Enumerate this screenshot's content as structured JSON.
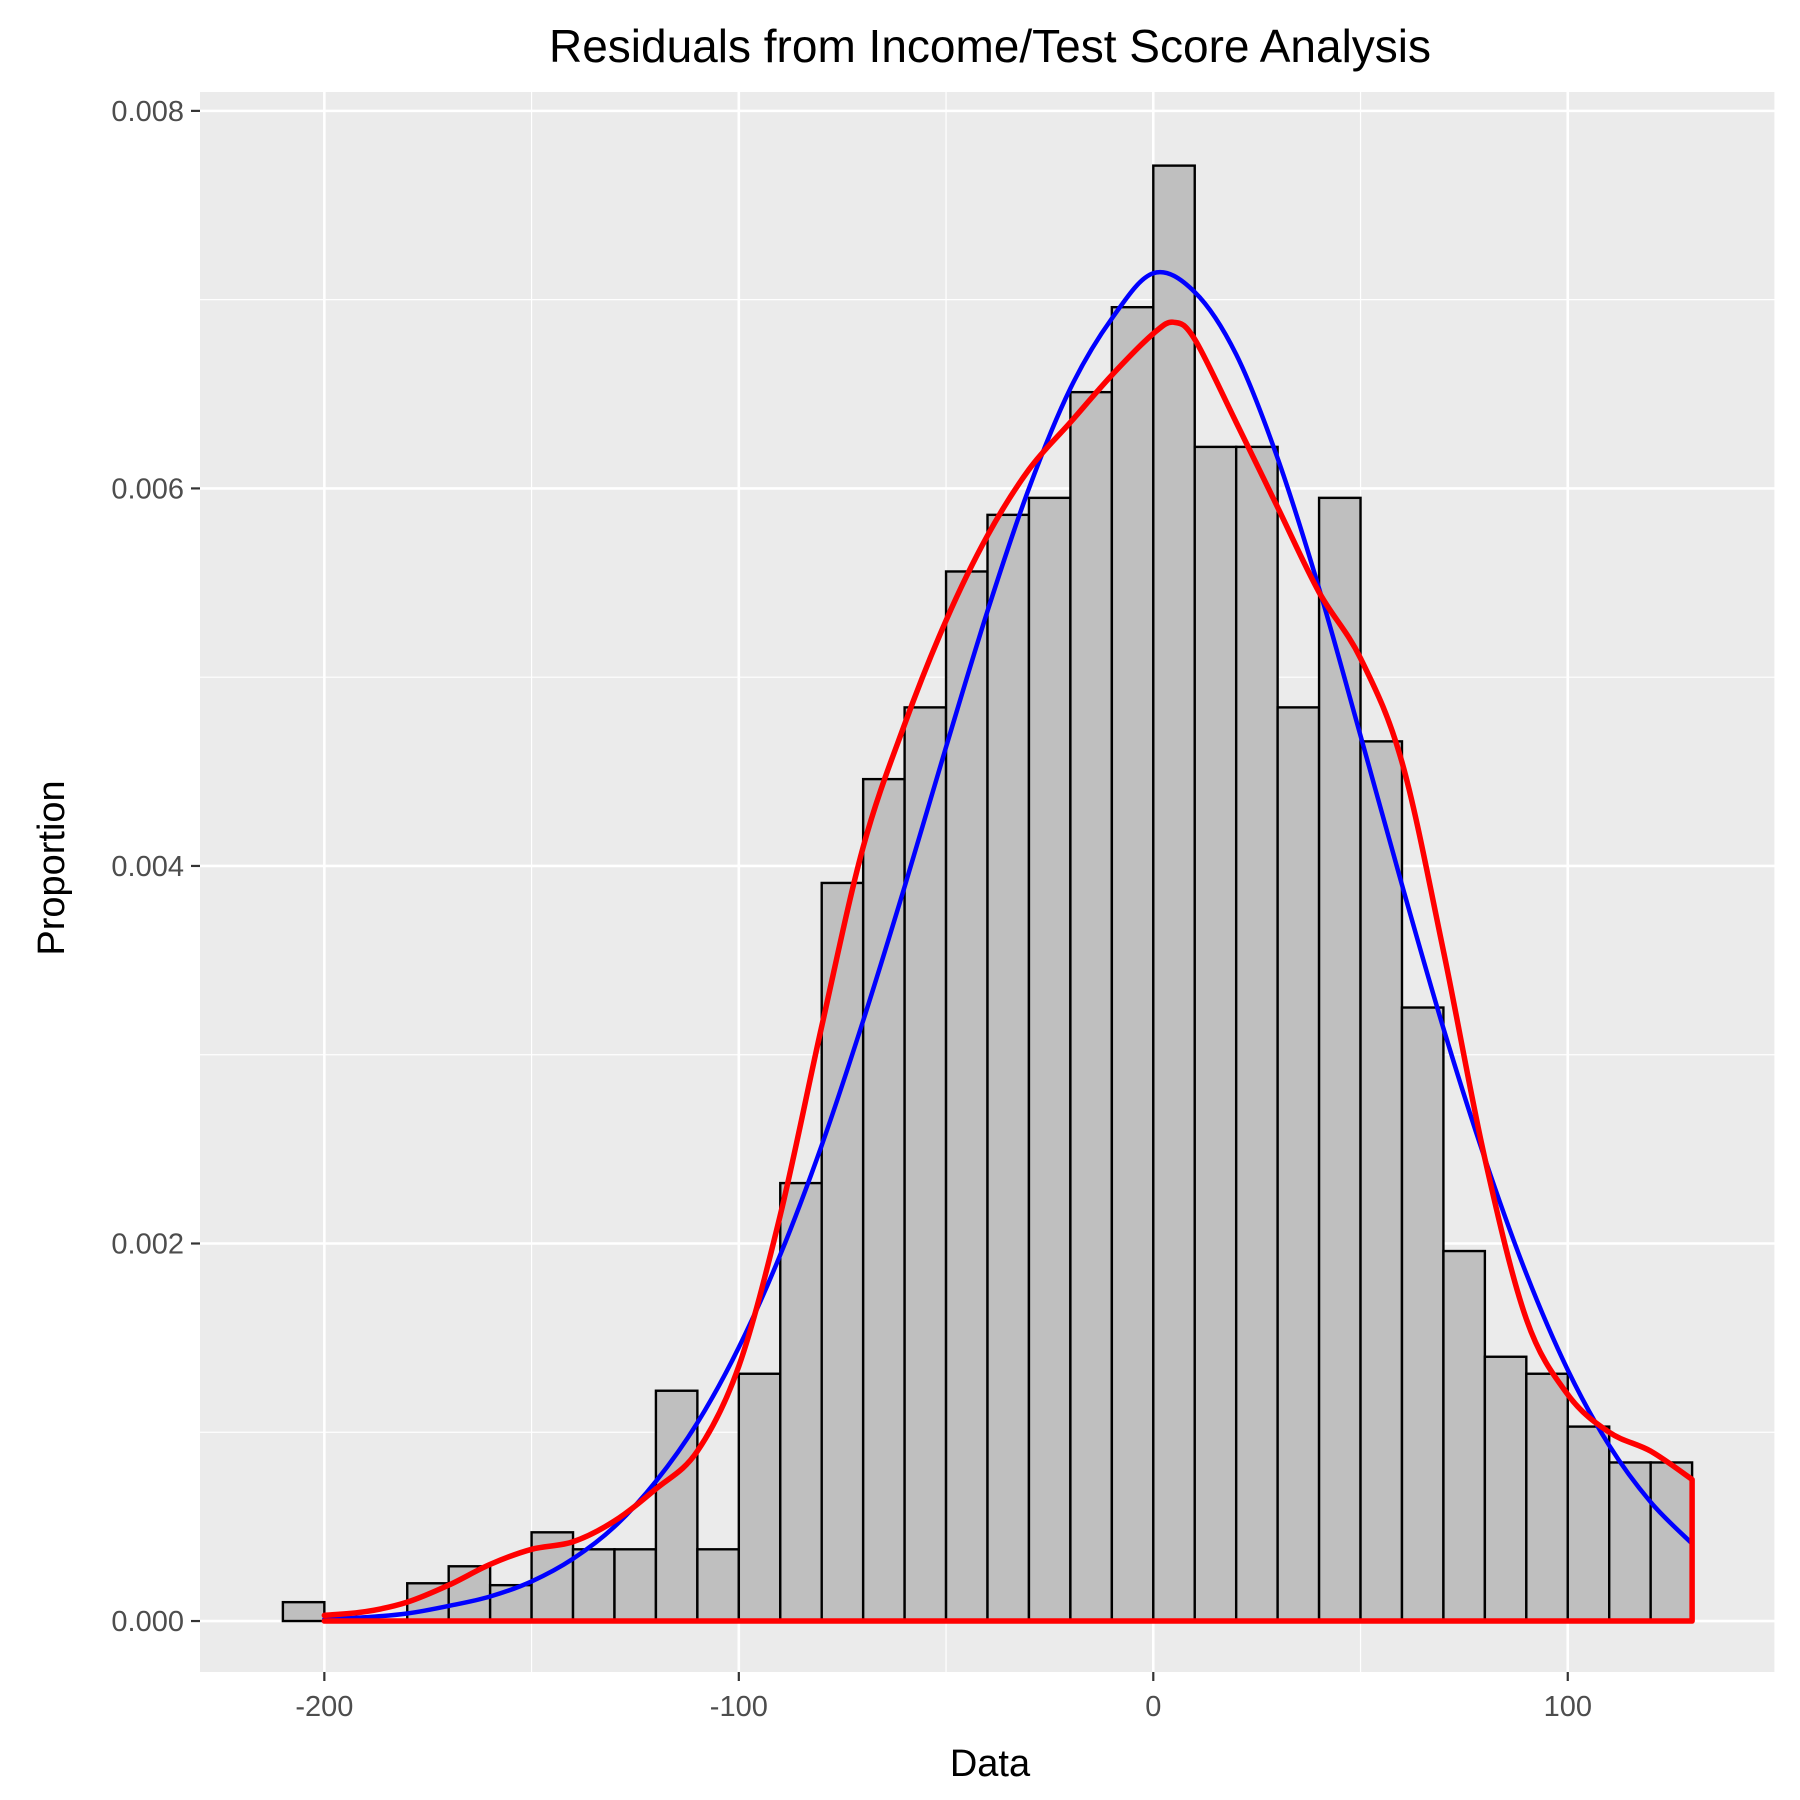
{
  "chart_data": {
    "type": "bar",
    "title": "Residuals from Income/Test Score Analysis",
    "xlabel": "Data",
    "ylabel": "Proportion",
    "xlim": [
      -230,
      150
    ],
    "ylim": [
      -0.00027,
      0.0081
    ],
    "x_ticks": [
      -200,
      -100,
      0,
      100
    ],
    "x_tick_labels": [
      "-200",
      "-100",
      "0",
      "100"
    ],
    "y_ticks": [
      0,
      0.002,
      0.004,
      0.006,
      0.008
    ],
    "y_tick_labels": [
      "0.000",
      "0.002",
      "0.004",
      "0.006",
      "0.008"
    ],
    "grid": true,
    "legend": "none",
    "colors": {
      "panel": "#ebebeb",
      "grid": "#ffffff",
      "bar_fill": "#bfbfbf",
      "bar_stroke": "#000000",
      "normal_curve": "#0000ff",
      "density_curve": "#ff0000",
      "tick_label": "#4d4d4d"
    },
    "bin_width": 10,
    "bins": [
      {
        "start": -210,
        "value": 0.0001
      },
      {
        "start": -200,
        "value": 0.0
      },
      {
        "start": -190,
        "value": 0.0
      },
      {
        "start": -180,
        "value": 0.0002
      },
      {
        "start": -170,
        "value": 0.00029
      },
      {
        "start": -160,
        "value": 0.00019
      },
      {
        "start": -150,
        "value": 0.00047
      },
      {
        "start": -140,
        "value": 0.00038
      },
      {
        "start": -130,
        "value": 0.00038
      },
      {
        "start": -120,
        "value": 0.00122
      },
      {
        "start": -110,
        "value": 0.00038
      },
      {
        "start": -100,
        "value": 0.00131
      },
      {
        "start": -90,
        "value": 0.00232
      },
      {
        "start": -80,
        "value": 0.00391
      },
      {
        "start": -70,
        "value": 0.00446
      },
      {
        "start": -60,
        "value": 0.00484
      },
      {
        "start": -50,
        "value": 0.00556
      },
      {
        "start": -40,
        "value": 0.00586
      },
      {
        "start": -30,
        "value": 0.00595
      },
      {
        "start": -20,
        "value": 0.00651
      },
      {
        "start": -10,
        "value": 0.00696
      },
      {
        "start": 0,
        "value": 0.00771
      },
      {
        "start": 10,
        "value": 0.00622
      },
      {
        "start": 20,
        "value": 0.00622
      },
      {
        "start": 30,
        "value": 0.00484
      },
      {
        "start": 40,
        "value": 0.00595
      },
      {
        "start": 50,
        "value": 0.00466
      },
      {
        "start": 60,
        "value": 0.00325
      },
      {
        "start": 70,
        "value": 0.00196
      },
      {
        "start": 80,
        "value": 0.0014
      },
      {
        "start": 90,
        "value": 0.00131
      },
      {
        "start": 100,
        "value": 0.00103
      },
      {
        "start": 110,
        "value": 0.00084
      },
      {
        "start": 120,
        "value": 0.00084
      }
    ],
    "series": [
      {
        "kind": "normal_curve",
        "color": "#0000ff",
        "x": [
          -200,
          -190,
          -180,
          -170,
          -160,
          -150,
          -140,
          -130,
          -120,
          -110,
          -100,
          -90,
          -80,
          -70,
          -60,
          -50,
          -40,
          -30,
          -20,
          -10,
          0,
          10,
          20,
          30,
          40,
          50,
          60,
          70,
          80,
          90,
          100,
          110,
          120,
          130
        ],
        "values": [
          1e-05,
          2e-05,
          4e-05,
          8e-05,
          0.00013,
          0.00021,
          0.00033,
          0.0005,
          0.00074,
          0.00105,
          0.00145,
          0.00194,
          0.00252,
          0.00318,
          0.00389,
          0.00463,
          0.00535,
          0.006,
          0.00653,
          0.0069,
          0.00714,
          0.00704,
          0.00671,
          0.00616,
          0.00547,
          0.00469,
          0.0039,
          0.00314,
          0.00245,
          0.00184,
          0.00133,
          0.00093,
          0.00063,
          0.00041
        ]
      },
      {
        "kind": "density_curve",
        "color": "#ff0000",
        "x": [
          -200,
          -190,
          -180,
          -170,
          -160,
          -150,
          -140,
          -130,
          -120,
          -110,
          -100,
          -90,
          -80,
          -70,
          -60,
          -50,
          -40,
          -30,
          -20,
          -10,
          0,
          5,
          10,
          20,
          30,
          40,
          50,
          60,
          70,
          80,
          90,
          100,
          110,
          120,
          130
        ],
        "values": [
          3e-05,
          5e-05,
          0.0001,
          0.00019,
          0.0003,
          0.00038,
          0.00042,
          0.00053,
          0.0007,
          0.0009,
          0.00135,
          0.00215,
          0.00315,
          0.0041,
          0.00475,
          0.0053,
          0.00575,
          0.0061,
          0.00635,
          0.0066,
          0.00682,
          0.00688,
          0.00679,
          0.00635,
          0.0059,
          0.00545,
          0.0051,
          0.00455,
          0.00355,
          0.00245,
          0.0016,
          0.0012,
          0.001,
          0.0009,
          0.00075
        ]
      }
    ]
  }
}
